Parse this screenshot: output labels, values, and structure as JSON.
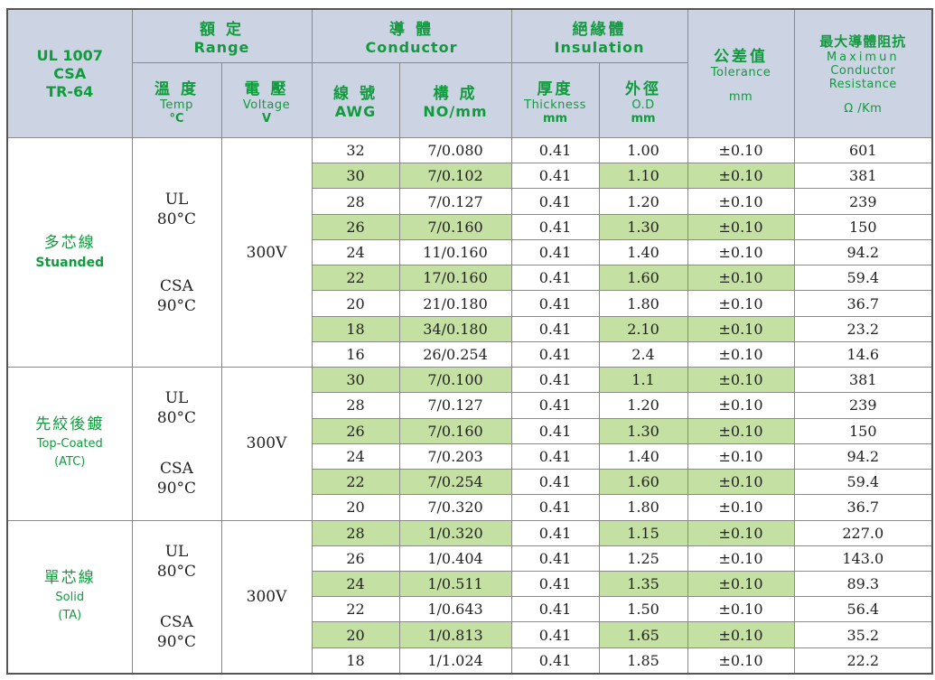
{
  "header": {
    "standard": [
      "UL 1007",
      "CSA",
      "TR-64"
    ],
    "range": {
      "zh": "額 定",
      "en": "Range"
    },
    "conductor": {
      "zh": "導 體",
      "en": "Conductor"
    },
    "insulation": {
      "zh": "絕緣體",
      "en": "Insulation"
    },
    "tolerance": {
      "zh": "公差值",
      "en": "Tolerance",
      "unit": "mm"
    },
    "resistance": {
      "zh": "最大導體阻抗",
      "en1": "Maximun",
      "en2": "Conductor",
      "en3": "Resistance",
      "unit": "Ω /Km"
    },
    "temp": {
      "zh": "溫 度",
      "en": "Temp",
      "unit": "°C"
    },
    "voltage": {
      "zh": "電 壓",
      "en": "Voltage",
      "unit": "V"
    },
    "awg": {
      "zh": "線 號",
      "en": "AWG"
    },
    "construction": {
      "zh": "構 成",
      "en": "NO/mm"
    },
    "thickness": {
      "zh": "厚度",
      "en": "Thickness",
      "unit": "mm"
    },
    "od": {
      "zh": "外徑",
      "en": "O.D",
      "unit": "mm"
    }
  },
  "groups": [
    {
      "name_zh": "多芯線",
      "name_en": "Stuanded",
      "name_en2": "",
      "ul": "UL",
      "ul_temp": "80°C",
      "csa": "CSA",
      "csa_temp": "90°C",
      "voltage": "300V",
      "rows": [
        {
          "awg": "32",
          "no": "7/0.080",
          "thick": "0.41",
          "od": "1.00",
          "tol": "±0.10",
          "res": "601"
        },
        {
          "awg": "30",
          "no": "7/0.102",
          "thick": "0.41",
          "od": "1.10",
          "tol": "±0.10",
          "res": "381"
        },
        {
          "awg": "28",
          "no": "7/0.127",
          "thick": "0.41",
          "od": "1.20",
          "tol": "±0.10",
          "res": "239"
        },
        {
          "awg": "26",
          "no": "7/0.160",
          "thick": "0.41",
          "od": "1.30",
          "tol": "±0.10",
          "res": "150"
        },
        {
          "awg": "24",
          "no": "11/0.160",
          "thick": "0.41",
          "od": "1.40",
          "tol": "±0.10",
          "res": "94.2"
        },
        {
          "awg": "22",
          "no": "17/0.160",
          "thick": "0.41",
          "od": "1.60",
          "tol": "±0.10",
          "res": "59.4"
        },
        {
          "awg": "20",
          "no": "21/0.180",
          "thick": "0.41",
          "od": "1.80",
          "tol": "±0.10",
          "res": "36.7"
        },
        {
          "awg": "18",
          "no": "34/0.180",
          "thick": "0.41",
          "od": "2.10",
          "tol": "±0.10",
          "res": "23.2"
        },
        {
          "awg": "16",
          "no": "26/0.254",
          "thick": "0.41",
          "od": "2.4",
          "tol": "±0.10",
          "res": "14.6"
        }
      ]
    },
    {
      "name_zh": "先絞後鍍",
      "name_en": "Top-Coated",
      "name_en2": "(ATC)",
      "ul": "UL",
      "ul_temp": "80°C",
      "csa": "CSA",
      "csa_temp": "90°C",
      "voltage": "300V",
      "rows": [
        {
          "awg": "30",
          "no": "7/0.100",
          "thick": "0.41",
          "od": "1.1",
          "tol": "±0.10",
          "res": "381"
        },
        {
          "awg": "28",
          "no": "7/0.127",
          "thick": "0.41",
          "od": "1.20",
          "tol": "±0.10",
          "res": "239"
        },
        {
          "awg": "26",
          "no": "7/0.160",
          "thick": "0.41",
          "od": "1.30",
          "tol": "±0.10",
          "res": "150"
        },
        {
          "awg": "24",
          "no": "7/0.203",
          "thick": "0.41",
          "od": "1.40",
          "tol": "±0.10",
          "res": "94.2"
        },
        {
          "awg": "22",
          "no": "7/0.254",
          "thick": "0.41",
          "od": "1.60",
          "tol": "±0.10",
          "res": "59.4"
        },
        {
          "awg": "20",
          "no": "7/0.320",
          "thick": "0.41",
          "od": "1.80",
          "tol": "±0.10",
          "res": "36.7"
        }
      ]
    },
    {
      "name_zh": "單芯線",
      "name_en": "Solid",
      "name_en2": "(TA)",
      "ul": "UL",
      "ul_temp": "80°C",
      "csa": "CSA",
      "csa_temp": "90°C",
      "voltage": "300V",
      "rows": [
        {
          "awg": "28",
          "no": "1/0.320",
          "thick": "0.41",
          "od": "1.15",
          "tol": "±0.10",
          "res": "227.0"
        },
        {
          "awg": "26",
          "no": "1/0.404",
          "thick": "0.41",
          "od": "1.25",
          "tol": "±0.10",
          "res": "143.0"
        },
        {
          "awg": "24",
          "no": "1/0.511",
          "thick": "0.41",
          "od": "1.35",
          "tol": "±0.10",
          "res": "89.3"
        },
        {
          "awg": "22",
          "no": "1/0.643",
          "thick": "0.41",
          "od": "1.50",
          "tol": "±0.10",
          "res": "56.4"
        },
        {
          "awg": "20",
          "no": "1/0.813",
          "thick": "0.41",
          "od": "1.65",
          "tol": "±0.10",
          "res": "35.2"
        },
        {
          "awg": "18",
          "no": "1/1.024",
          "thick": "0.41",
          "od": "1.85",
          "tol": "±0.10",
          "res": "22.2"
        }
      ]
    }
  ],
  "colors": {
    "header_bg": "#ccd3e2",
    "header_text": "#129a3f",
    "highlight": "#c4e0a2"
  }
}
